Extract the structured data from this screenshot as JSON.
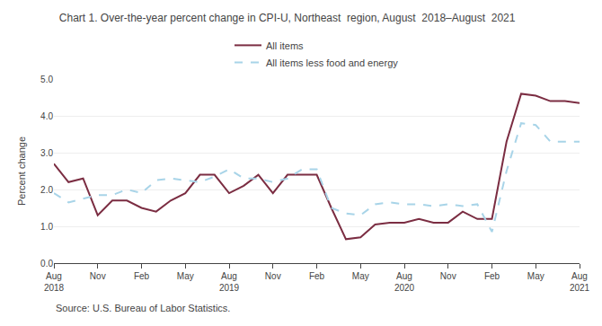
{
  "chart_data": {
    "type": "line",
    "title": "Chart 1. Over-the-year percent change in CPI-U, Northeast  region, August  2018–August  2021",
    "ylabel": "Percent change",
    "annotations": [
      "Source: U.S. Bureau of Labor Statistics."
    ],
    "categories": [
      "Aug\n2018",
      null,
      null,
      "Nov",
      null,
      null,
      "Feb",
      null,
      null,
      "May",
      null,
      null,
      "Aug\n2019",
      null,
      null,
      "Nov",
      null,
      null,
      "Feb",
      null,
      null,
      "May",
      null,
      null,
      "Aug\n2020",
      null,
      null,
      "Nov",
      null,
      null,
      "Feb",
      null,
      null,
      "May",
      null,
      null,
      "Aug\n2021"
    ],
    "series": [
      {
        "name": "All items",
        "color": "#7b2d42",
        "line_style": "solid",
        "values": [
          2.7,
          2.2,
          2.3,
          1.3,
          1.7,
          1.7,
          1.5,
          1.4,
          1.7,
          1.9,
          2.4,
          2.4,
          1.9,
          2.1,
          2.4,
          1.9,
          2.4,
          2.4,
          2.4,
          1.5,
          0.65,
          0.7,
          1.05,
          1.1,
          1.1,
          1.2,
          1.1,
          1.1,
          1.4,
          1.2,
          1.2,
          3.3,
          4.6,
          4.55,
          4.4,
          4.4,
          4.35
        ]
      },
      {
        "name": "All items less food and energy",
        "color": "#a8d4e8",
        "line_style": "dashed",
        "values": [
          1.9,
          1.65,
          1.75,
          1.85,
          1.85,
          2.0,
          1.9,
          2.25,
          2.3,
          2.25,
          2.2,
          2.35,
          2.55,
          2.3,
          2.3,
          2.2,
          2.3,
          2.55,
          2.55,
          1.5,
          1.35,
          1.3,
          1.6,
          1.65,
          1.6,
          1.6,
          1.55,
          1.6,
          1.55,
          1.6,
          0.85,
          2.5,
          3.8,
          3.75,
          3.3,
          3.3,
          3.3
        ]
      }
    ],
    "ylim": [
      0.0,
      5.0
    ],
    "yticks": [
      {
        "value": 0.0,
        "label": "0.0"
      },
      {
        "value": 1.0,
        "label": "1.0"
      },
      {
        "value": 2.0,
        "label": "2.0"
      },
      {
        "value": 3.0,
        "label": "3.0"
      },
      {
        "value": 4.0,
        "label": "4.0"
      },
      {
        "value": 5.0,
        "label": "5.0"
      }
    ],
    "grid": true,
    "legend": "top"
  }
}
